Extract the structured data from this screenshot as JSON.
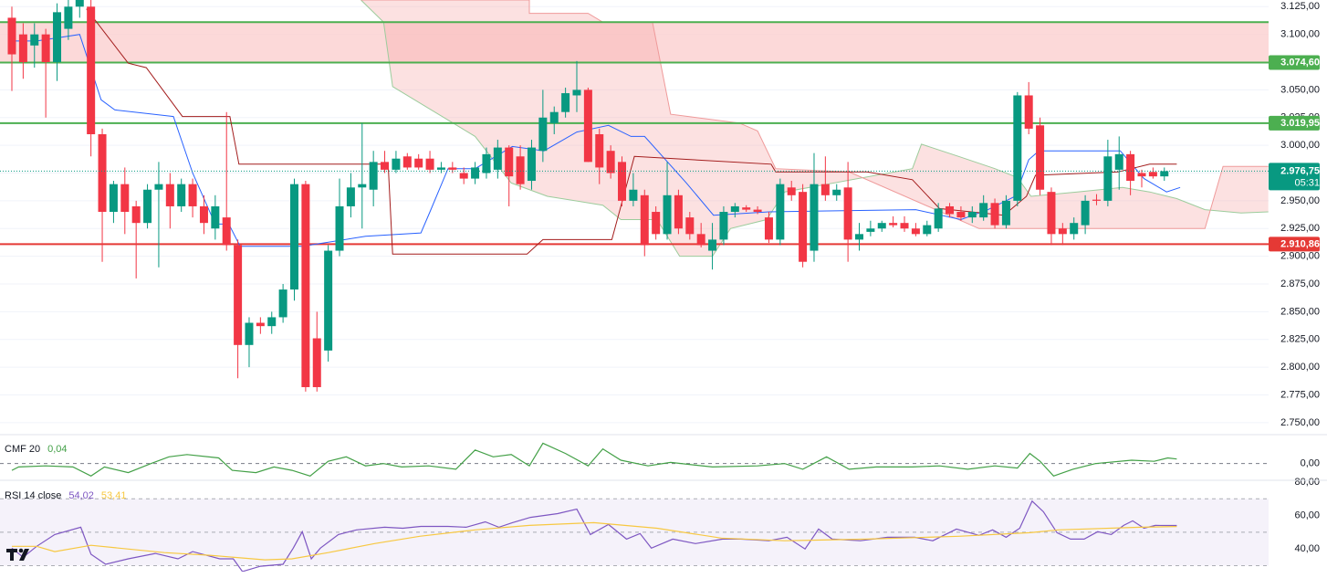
{
  "chart_data": [
    {
      "type": "candlestick",
      "colors": {
        "up": "#089981",
        "down": "#f23645"
      },
      "open": [
        3115,
        3100,
        3090,
        3100,
        3075,
        3105,
        3125,
        3125,
        3010,
        2940,
        2965,
        2945,
        2930,
        2960,
        2965,
        2945,
        2965,
        2945,
        2925,
        2935,
        2910,
        2820,
        2840,
        2837,
        2845,
        2870,
        2965,
        2826,
        2815,
        2905,
        2945,
        2962,
        2960,
        2985,
        2978,
        2990,
        2988,
        2988,
        2978,
        2980,
        2975,
        2970,
        2975,
        2978,
        2998,
        2990,
        2968,
        2995,
        3020,
        3030,
        3045,
        3050,
        3010,
        2995,
        2985,
        2950,
        2955,
        2940,
        2920,
        2955,
        2935,
        2920,
        2905,
        2915,
        2940,
        2944,
        2942,
        2935,
        2915,
        2962,
        2958,
        2905,
        2965,
        2955,
        2962,
        2915,
        2922,
        2925,
        2930,
        2930,
        2925,
        2920,
        2925,
        2945,
        2940,
        2935,
        2935,
        2948,
        2928,
        2950,
        3045,
        3018,
        2958,
        2925,
        2920,
        2928,
        2951,
        2950,
        2978,
        2992,
        2975,
        2976,
        2972
      ],
      "high": [
        3125,
        3110,
        3110,
        3105,
        3128,
        3131,
        3131,
        3131,
        3015,
        2968,
        2980,
        2950,
        2965,
        2985,
        2975,
        2970,
        2970,
        2955,
        2955,
        3030,
        2915,
        2845,
        2845,
        2850,
        2875,
        2970,
        2968,
        2850,
        2910,
        2970,
        2975,
        3020,
        2995,
        2995,
        2995,
        2993,
        2992,
        2995,
        2985,
        2985,
        2980,
        2985,
        2998,
        3005,
        3000,
        3000,
        3005,
        3050,
        3035,
        3052,
        3076,
        3052,
        3015,
        3000,
        2990,
        2975,
        2960,
        2945,
        2985,
        2960,
        2940,
        2930,
        2930,
        2945,
        2948,
        2946,
        2945,
        2940,
        2970,
        2968,
        2965,
        2993,
        2990,
        2965,
        2985,
        2930,
        2932,
        2932,
        2936,
        2936,
        2930,
        2932,
        2948,
        2948,
        2945,
        2945,
        2955,
        2952,
        2955,
        3048,
        3057,
        3025,
        2962,
        2930,
        2935,
        2955,
        2956,
        3005,
        3008,
        2995,
        2978,
        2980,
        2980
      ],
      "low": [
        3049,
        3060,
        3070,
        3025,
        3058,
        3095,
        3115,
        2990,
        2895,
        2930,
        2920,
        2880,
        2925,
        2890,
        2925,
        2940,
        2935,
        2920,
        2915,
        2905,
        2790,
        2800,
        2830,
        2830,
        2840,
        2860,
        2778,
        2778,
        2805,
        2900,
        2935,
        2925,
        2945,
        2975,
        2975,
        2978,
        2978,
        2975,
        2975,
        2975,
        2965,
        2965,
        2970,
        2970,
        2945,
        2960,
        2960,
        2985,
        3010,
        3025,
        3030,
        2985,
        2965,
        2970,
        2945,
        2945,
        2900,
        2915,
        2915,
        2920,
        2915,
        2908,
        2888,
        2910,
        2935,
        2940,
        2938,
        2912,
        2910,
        2950,
        2890,
        2895,
        2950,
        2950,
        2895,
        2905,
        2918,
        2922,
        2926,
        2922,
        2918,
        2918,
        2922,
        2935,
        2932,
        2930,
        2932,
        2925,
        2925,
        2945,
        3010,
        2955,
        2910,
        2910,
        2915,
        2920,
        2946,
        2945,
        2960,
        2955,
        2962,
        2970,
        2968
      ],
      "close": [
        3082,
        3075,
        3100,
        3075,
        3120,
        3125,
        3131,
        3010,
        2940,
        2965,
        2940,
        2930,
        2960,
        2965,
        2945,
        2965,
        2945,
        2930,
        2945,
        2910,
        2820,
        2840,
        2837,
        2845,
        2870,
        2965,
        2782,
        2782,
        2905,
        2945,
        2962,
        2965,
        2985,
        2978,
        2988,
        2980,
        2980,
        2978,
        2980,
        2978,
        2970,
        2980,
        2992,
        2998,
        2972,
        2965,
        2998,
        3025,
        3030,
        3047,
        3050,
        2985,
        2980,
        2975,
        2950,
        2960,
        2910,
        2920,
        2955,
        2925,
        2920,
        2910,
        2915,
        2940,
        2945,
        2942,
        2940,
        2915,
        2965,
        2955,
        2895,
        2965,
        2955,
        2960,
        2915,
        2920,
        2925,
        2930,
        2928,
        2925,
        2920,
        2928,
        2943,
        2938,
        2935,
        2940,
        2948,
        2928,
        2950,
        3045,
        3015,
        2960,
        2920,
        2920,
        2930,
        2950,
        2950,
        2990,
        2992,
        2968,
        2972,
        2972,
        2976.75
      ],
      "ylim": [
        2740,
        3131
      ],
      "yticks": [
        {
          "value": 2750,
          "label": "2.750,00"
        },
        {
          "value": 2775,
          "label": "2.775,00"
        },
        {
          "value": 2800,
          "label": "2.800,00"
        },
        {
          "value": 2825,
          "label": "2.825,00"
        },
        {
          "value": 2850,
          "label": "2.850,00"
        },
        {
          "value": 2875,
          "label": "2.875,00"
        },
        {
          "value": 2900,
          "label": "2.900,00"
        },
        {
          "value": 2925,
          "label": "2.925,00"
        },
        {
          "value": 2950,
          "label": "2.950,00"
        },
        {
          "value": 2975,
          "label": "2.975,00"
        },
        {
          "value": 3000,
          "label": "3.000,00"
        },
        {
          "value": 3025,
          "label": "3.025,00"
        },
        {
          "value": 3050,
          "label": "3.050,00"
        },
        {
          "value": 3075,
          "label": "3.075,00"
        },
        {
          "value": 3100,
          "label": "3.100,00"
        },
        {
          "value": 3125,
          "label": "3.125,00"
        }
      ],
      "grid": true,
      "cloud": {
        "color": "#f7a8a8",
        "upper": {
          "color": "#9ccc9c",
          "x": [
            30.9,
            32.9,
            33.7,
            41,
            44.2,
            47.4,
            52.3,
            53.9,
            57.1,
            59.1,
            62,
            63.6,
            66.8,
            68.4,
            79.7,
            80.5,
            83.8,
            87,
            89,
            90.2,
            94.3,
            98.3,
            100.7,
            103.1,
            105.6,
            108.8,
            111.2
          ],
          "values": [
            3131,
            3111,
            3053,
            3008,
            2966,
            2954,
            2946,
            2933,
            2933,
            2900,
            2900,
            2925,
            2933,
            2958,
            2979,
            3001,
            2990,
            2979,
            2971,
            2954,
            2958,
            2962,
            2958,
            2952,
            2942,
            2939,
            2940
          ]
        },
        "lower": {
          "color": "#ef9a9a",
          "x": [
            30.9,
            45.8,
            45.8,
            51,
            52.3,
            56.7,
            58.3,
            64.4,
            66,
            67.6,
            74.1,
            85.6,
            105.6,
            107.2,
            111.2
          ],
          "values": [
            3131,
            3131,
            3119,
            3119,
            3111,
            3111,
            3028,
            3020,
            3013,
            2979,
            2976,
            2925,
            2925,
            2981,
            2981
          ]
        }
      },
      "lines": [
        {
          "color": "#2962ff",
          "x": [
            0,
            2.2,
            6,
            7.9,
            9.1,
            14.3,
            16,
            18,
            19.2,
            20.2,
            25.7,
            31.3,
            36.2,
            37,
            38.6,
            41,
            44.3,
            47.1,
            50,
            52.8,
            54.8,
            56,
            59.7,
            62.1,
            67,
            80,
            84,
            86.4,
            88.8,
            90,
            90.9,
            98.1,
            100.2,
            102.2,
            103.4
          ],
          "values": [
            3094,
            3094,
            3100,
            3041,
            3032,
            3026,
            2975,
            2929,
            2929,
            2909,
            2909,
            2918,
            2921,
            2940,
            2979,
            2979,
            2999,
            2995,
            3012,
            3018,
            3008,
            3008,
            2966,
            2937,
            2940,
            2942,
            2933,
            2942,
            2954,
            2987,
            2995,
            2995,
            2970,
            2958,
            2962
          ]
        },
        {
          "color": "#a31c1c",
          "x": [
            6.6,
            10.3,
            11.9,
            15.1,
            19.3,
            20.1,
            33.3,
            33.7,
            45.6,
            47,
            53.1,
            55.1,
            67.2,
            67.6,
            75.7,
            79.7,
            82.1,
            87.8,
            89.8,
            90.6,
            97.9,
            100.7,
            103.1
          ],
          "values": [
            3123,
            3074,
            3070,
            3026,
            3026,
            2983,
            2983,
            2902,
            2902,
            2915,
            2915,
            2990,
            2983,
            2976,
            2976,
            2969,
            2943,
            2937,
            2954,
            2973,
            2976,
            2983,
            2983
          ]
        }
      ],
      "zone": {
        "from": 3074.6,
        "to": 3111,
        "color": "#fbd0d0"
      },
      "levels": [
        {
          "value": 3111,
          "color": "#4caf50"
        },
        {
          "value": 3074.6,
          "label": "3.074,60",
          "color": "#4caf50"
        },
        {
          "value": 3019.95,
          "label": "3.019,95",
          "color": "#4caf50"
        },
        {
          "value": 2910.86,
          "label": "2.910,86",
          "color": "#e53935"
        }
      ],
      "last_price": {
        "value": 2976.75,
        "label": "2.976,75",
        "countdown": "05:31",
        "color": "#089981"
      }
    },
    {
      "type": "line",
      "title": "CMF 20",
      "series": [
        {
          "color": "#43a047",
          "value_label": "0,04",
          "x": [
            0,
            0.6,
            3,
            5.4,
            7,
            8.2,
            10.3,
            12.3,
            13.9,
            15.5,
            18.3,
            19.5,
            21.6,
            23.2,
            24.8,
            26.4,
            28,
            29.6,
            31.3,
            32.9,
            34.5,
            36.9,
            39.3,
            41,
            42.6,
            44.2,
            45.8,
            47,
            49,
            51,
            52.3,
            53.9,
            56.3,
            58.3,
            62,
            66,
            68.4,
            70,
            72.1,
            74.1,
            76.5,
            79.7,
            82.1,
            84.6,
            87,
            89,
            90.1,
            91,
            92.2,
            93.9,
            95.9,
            99.1,
            101.1,
            102.3,
            103.1
          ],
          "values": [
            -0.06,
            -0.03,
            -0.02,
            -0.03,
            -0.11,
            -0.03,
            -0.08,
            0,
            0.06,
            0.08,
            0.05,
            -0.06,
            -0.08,
            -0.03,
            -0.06,
            -0.11,
            0.02,
            0.06,
            -0.02,
            0,
            -0.03,
            -0.02,
            -0.05,
            0.12,
            0.06,
            0.08,
            -0.02,
            0.18,
            0.09,
            -0.02,
            0.13,
            0.03,
            -0.02,
            0.01,
            -0.03,
            -0.02,
            0,
            -0.05,
            0.06,
            -0.05,
            -0.03,
            -0.03,
            -0.02,
            -0.05,
            -0.02,
            -0.04,
            0.09,
            0.02,
            -0.11,
            -0.05,
            0,
            0.03,
            0.02,
            0.05,
            0.04
          ]
        }
      ],
      "ylim": [
        -0.14,
        0.24
      ],
      "yticks": [
        {
          "value": 0,
          "label": "0,00"
        }
      ]
    },
    {
      "type": "line",
      "title": "RSI 14 close",
      "series": [
        {
          "color": "#7e57c2",
          "value_label": "54,02",
          "x": [
            0,
            1,
            2.2,
            3.8,
            6.1,
            7,
            8.3,
            10.3,
            12.7,
            14.7,
            16,
            18.4,
            19.6,
            20.4,
            22,
            24,
            24.9,
            25.7,
            26.5,
            27.3,
            28.9,
            30.5,
            33,
            34.6,
            36.2,
            38.6,
            40.2,
            41.9,
            43.1,
            44.3,
            45.9,
            48.3,
            50,
            51.2,
            52.8,
            54.4,
            55.6,
            56.6,
            58.5,
            60.5,
            62.9,
            64.5,
            67,
            68.6,
            70.2,
            71.4,
            72.6,
            75.1,
            77.5,
            79.9,
            81.5,
            83.6,
            85.6,
            86.8,
            88,
            89.2,
            90.3,
            91.3,
            92.5,
            93.7,
            94.9,
            96.1,
            97.3,
            98.4,
            99.2,
            100.2,
            101.2,
            103.1
          ],
          "values": [
            40.5,
            35.1,
            41.6,
            48.6,
            53.0,
            36.8,
            30.8,
            34.1,
            37.3,
            34.1,
            38.4,
            34.1,
            34.1,
            26.5,
            29.7,
            30.8,
            40.5,
            50.3,
            34.1,
            40.5,
            48.6,
            51.4,
            53.0,
            52.4,
            53.5,
            53.5,
            53.0,
            56.2,
            53.0,
            55.7,
            58.9,
            61.1,
            63.8,
            48.6,
            54.6,
            45.9,
            49.2,
            40.5,
            45.9,
            43.2,
            45.9,
            45.9,
            44.9,
            47.0,
            40.0,
            51.9,
            45.9,
            44.9,
            47.0,
            47.0,
            44.9,
            51.9,
            48.1,
            51.4,
            47.0,
            52.4,
            68.6,
            62.2,
            49.7,
            45.9,
            45.9,
            50.3,
            48.6,
            54.1,
            56.8,
            52.4,
            54.1,
            54.02
          ]
        },
        {
          "color": "#f7c841",
          "value_label": "53,41",
          "x": [
            0,
            2.2,
            3.8,
            7,
            13.5,
            17.5,
            22.4,
            24.8,
            28,
            32.1,
            36.1,
            41,
            45.8,
            51.5,
            57.1,
            62.8,
            68.4,
            75.7,
            83.8,
            90.1,
            92.6,
            99.9,
            103.1
          ],
          "values": [
            41.6,
            41.6,
            38.4,
            42.2,
            37.8,
            36.2,
            33.5,
            34.1,
            37.8,
            43.2,
            47.6,
            51.4,
            54.1,
            55.7,
            52.4,
            46.5,
            44.9,
            45.9,
            47.6,
            49.7,
            51.4,
            53.0,
            53.41
          ]
        }
      ],
      "ylim": [
        27,
        80.5
      ],
      "yticks": [
        {
          "value": 40,
          "label": "40,00"
        },
        {
          "value": 60,
          "label": "60,00"
        },
        {
          "value": 80,
          "label": "80,00"
        }
      ],
      "band": [
        30,
        70
      ],
      "hlines": [
        30,
        50,
        70
      ]
    }
  ]
}
